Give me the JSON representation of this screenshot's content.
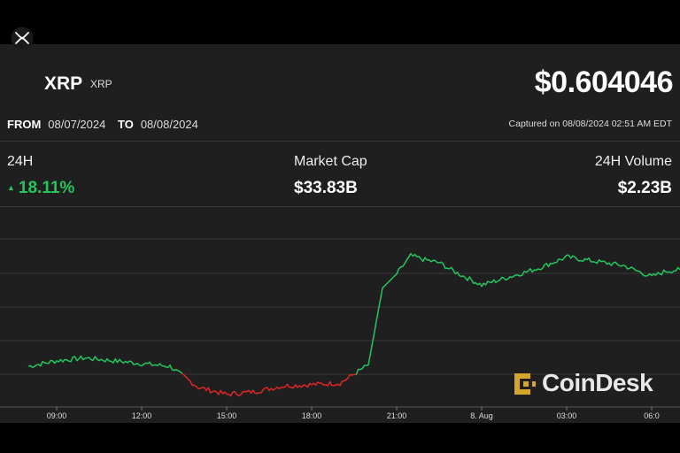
{
  "header": {
    "logo_icon": "xrp-logo-icon",
    "name": "XRP",
    "symbol": "XRP",
    "price": "$0.604046",
    "from_label": "FROM",
    "from_date": "08/07/2024",
    "to_label": "TO",
    "to_date": "08/08/2024",
    "captured": "Captured on 08/08/2024 02:51 AM EDT"
  },
  "stats": {
    "change_label": "24H",
    "change_value": "18.11%",
    "change_icon": "triangle-up-icon",
    "market_cap_label": "Market Cap",
    "market_cap_value": "$33.83B",
    "volume_label": "24H Volume",
    "volume_value": "$2.23B"
  },
  "colors": {
    "up": "#22c55e",
    "down": "#dc2626",
    "background": "#1f1f1f"
  },
  "watermark": {
    "text": "CoinDesk",
    "icon": "coindesk-logo-icon"
  },
  "chart_data": {
    "type": "line",
    "x_ticks": [
      "09:00",
      "12:00",
      "15:00",
      "18:00",
      "21:00",
      "8. Aug",
      "03:00",
      "06:0"
    ],
    "x_hours": [
      8,
      9,
      10,
      11,
      12,
      13,
      14,
      15,
      16,
      17,
      18,
      19,
      20,
      20.5,
      21,
      21.5,
      22,
      22.5,
      23,
      24,
      25,
      26,
      27,
      28,
      29,
      30,
      30.5,
      31
    ],
    "y": [
      0.524,
      0.528,
      0.53,
      0.528,
      0.526,
      0.524,
      0.509,
      0.504,
      0.506,
      0.51,
      0.511,
      0.512,
      0.525,
      0.58,
      0.59,
      0.603,
      0.6,
      0.598,
      0.592,
      0.582,
      0.588,
      0.594,
      0.602,
      0.599,
      0.596,
      0.588,
      0.592,
      0.593
    ],
    "split_x": 20,
    "baseline": 0.519,
    "ylim": [
      0.495,
      0.615
    ],
    "grid": true,
    "watermark": "CoinDesk"
  }
}
